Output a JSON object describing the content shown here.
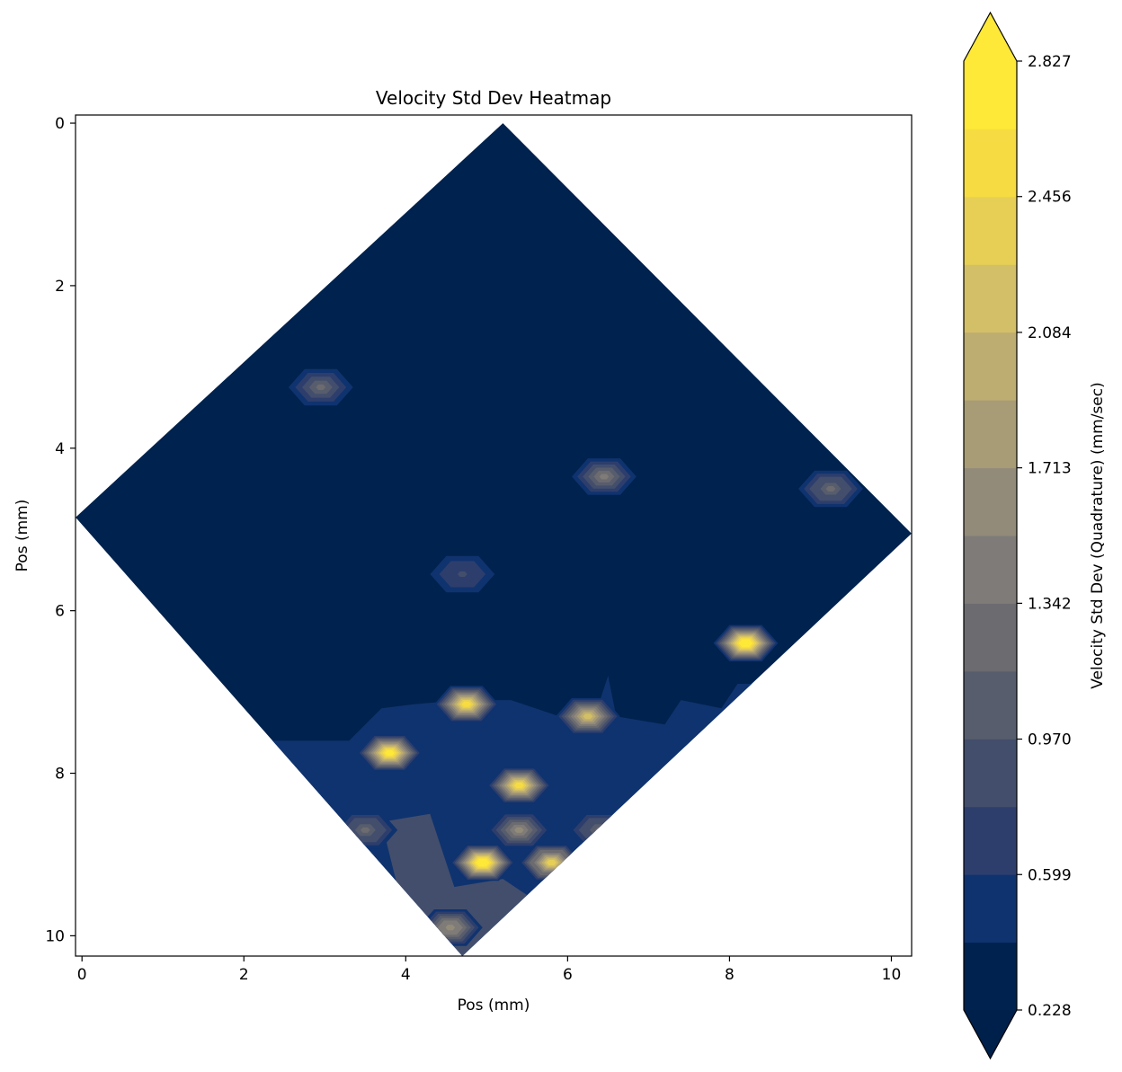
{
  "chart_data": {
    "type": "heatmap",
    "title": "Velocity Std Dev Heatmap",
    "xlabel": "Pos (mm)",
    "ylabel": "Pos (mm)",
    "xlim": [
      -0.08,
      10.25
    ],
    "ylim": [
      10.25,
      -0.1
    ],
    "y_inverted": true,
    "x_ticks": [
      0,
      2,
      4,
      6,
      8,
      10
    ],
    "y_ticks": [
      0,
      2,
      4,
      6,
      8,
      10
    ],
    "x_tick_labels": [
      "0",
      "2",
      "4",
      "6",
      "8",
      "10"
    ],
    "y_tick_labels": [
      "0",
      "2",
      "4",
      "6",
      "8",
      "10"
    ],
    "domain_polygon": [
      [
        5.2,
        0.0
      ],
      [
        10.25,
        5.05
      ],
      [
        4.7,
        10.25
      ],
      [
        -0.08,
        4.85
      ]
    ],
    "background_value": 0.3,
    "lower_band_value": 0.5,
    "lower_band_boundary": [
      [
        3.3,
        7.6
      ],
      [
        3.7,
        7.2
      ],
      [
        4.1,
        7.15
      ],
      [
        4.7,
        7.1
      ],
      [
        5.3,
        7.1
      ],
      [
        5.9,
        7.3
      ],
      [
        6.4,
        7.1
      ],
      [
        6.5,
        6.8
      ],
      [
        6.6,
        7.3
      ],
      [
        7.2,
        7.4
      ],
      [
        7.4,
        7.1
      ],
      [
        7.9,
        7.2
      ],
      [
        8.1,
        6.9
      ]
    ],
    "lower_left_region_value": 0.8,
    "lower_left_region": [
      [
        3.7,
        8.6
      ],
      [
        4.3,
        8.5
      ],
      [
        4.6,
        9.4
      ],
      [
        5.2,
        9.3
      ],
      [
        5.5,
        9.5
      ],
      [
        4.7,
        10.25
      ],
      [
        3.9,
        9.4
      ]
    ],
    "hotspots": [
      {
        "x": 2.95,
        "y": 3.25,
        "value": 1.2
      },
      {
        "x": 6.45,
        "y": 4.35,
        "value": 1.4
      },
      {
        "x": 9.25,
        "y": 4.5,
        "value": 1.3
      },
      {
        "x": 4.7,
        "y": 5.55,
        "value": 0.9
      },
      {
        "x": 8.2,
        "y": 6.4,
        "value": 2.827
      },
      {
        "x": 4.75,
        "y": 7.15,
        "value": 2.5
      },
      {
        "x": 3.8,
        "y": 7.75,
        "value": 2.7
      },
      {
        "x": 6.25,
        "y": 7.3,
        "value": 2.1
      },
      {
        "x": 5.4,
        "y": 8.15,
        "value": 2.5
      },
      {
        "x": 3.5,
        "y": 8.7,
        "value": 1.3
      },
      {
        "x": 5.4,
        "y": 8.7,
        "value": 1.6
      },
      {
        "x": 6.4,
        "y": 8.7,
        "value": 1.3
      },
      {
        "x": 4.95,
        "y": 9.1,
        "value": 2.827
      },
      {
        "x": 5.8,
        "y": 9.1,
        "value": 2.4
      },
      {
        "x": 4.55,
        "y": 9.9,
        "value": 1.7
      }
    ],
    "colorbar": {
      "label": "Velocity Std Dev (Quadrature) (mm/sec)",
      "min": 0.228,
      "max": 2.827,
      "levels": 14,
      "extend": "both",
      "ticks": [
        0.228,
        0.599,
        0.97,
        1.342,
        1.713,
        2.084,
        2.456,
        2.827
      ],
      "tick_labels": [
        "0.228",
        "0.599",
        "0.970",
        "1.342",
        "1.713",
        "2.084",
        "2.456",
        "2.827"
      ],
      "colormap": "cividis",
      "colors": [
        "#00224e",
        "#0f336f",
        "#2d3e6d",
        "#434e6c",
        "#575d6d",
        "#6b6b70",
        "#7e7b78",
        "#938b7a",
        "#a89c76",
        "#bdad70",
        "#d3bf67",
        "#e7cf56",
        "#f6dc42",
        "#fee838"
      ],
      "under_color": "#00204c",
      "over_color": "#fee838"
    }
  }
}
